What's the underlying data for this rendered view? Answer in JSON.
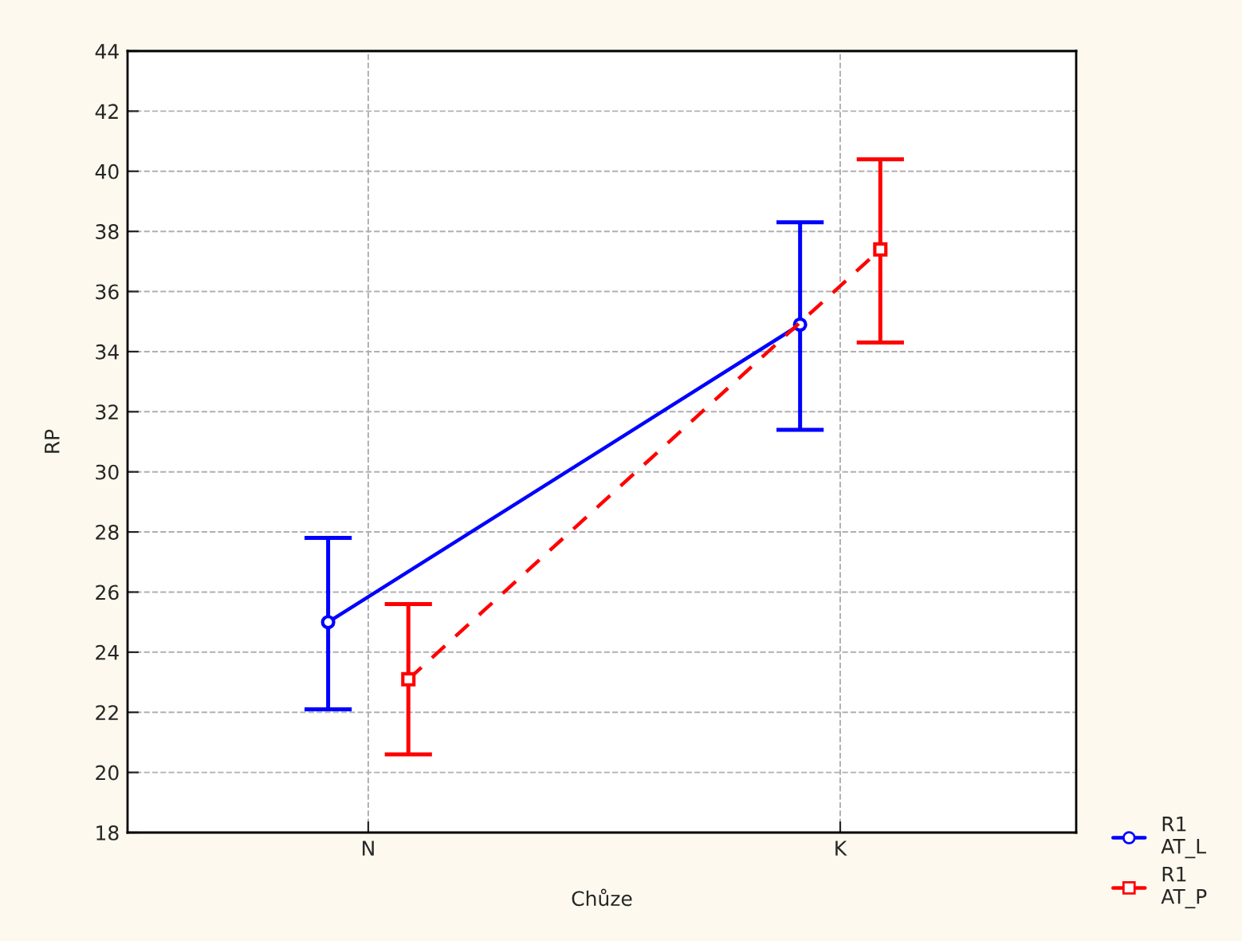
{
  "chart_data": {
    "type": "line",
    "xlabel": "Chůze",
    "ylabel": "RP",
    "categories": [
      "N",
      "K"
    ],
    "series": [
      {
        "name": "R1\nAT_L",
        "color": "#0000ff",
        "values": [
          25.0,
          34.9
        ],
        "errors": [
          [
            22.1,
            27.8
          ],
          [
            31.4,
            38.3
          ]
        ],
        "marker": "circle",
        "line_style": "solid"
      },
      {
        "name": "R1\nAT_P",
        "color": "#ff0000",
        "values": [
          23.1,
          37.4
        ],
        "errors": [
          [
            20.6,
            25.6
          ],
          [
            34.3,
            40.4
          ]
        ],
        "marker": "square",
        "line_style": "dashed"
      }
    ],
    "ylim": [
      18,
      44
    ],
    "yticks": [
      18,
      20,
      22,
      24,
      26,
      28,
      30,
      32,
      34,
      36,
      38,
      40,
      42,
      44
    ],
    "grid": true,
    "legend": "bottom right"
  }
}
